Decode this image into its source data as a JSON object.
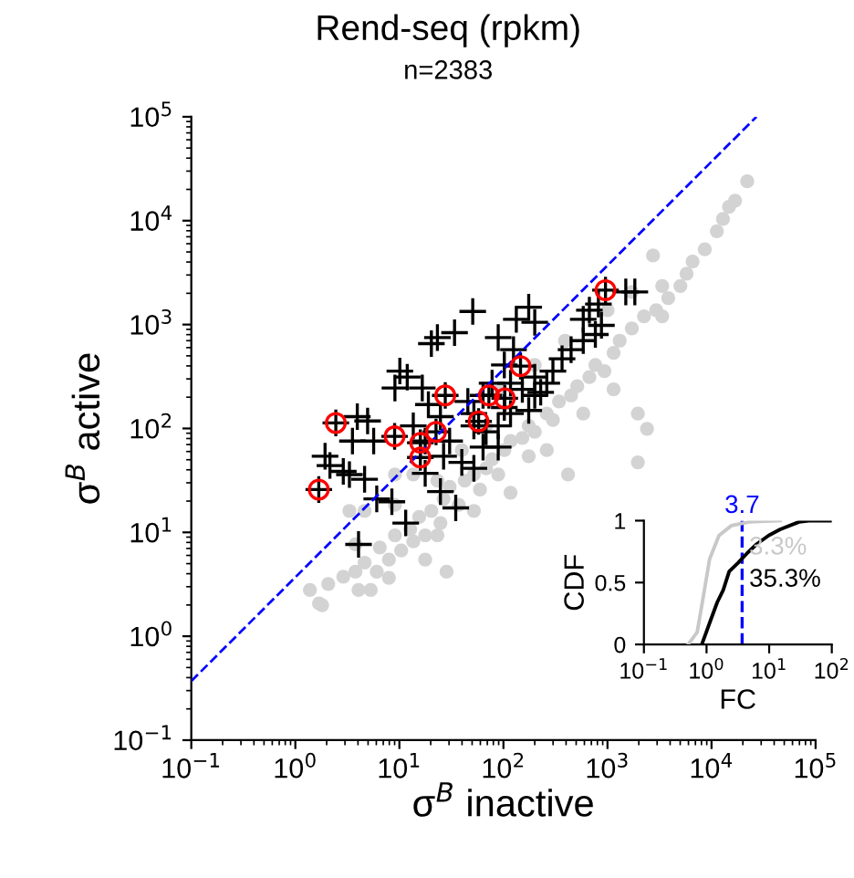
{
  "chart_data": [
    {
      "type": "scatter",
      "title": "Rend-seq (rpkm)",
      "subtitle": "n=2383",
      "xlabel": "σ$^{B}$ inactive",
      "ylabel": "σ$^{B}$ active",
      "log": "xy",
      "xlim": [
        0.1,
        100000
      ],
      "ylim": [
        0.1,
        100000
      ],
      "xticks": [
        {
          "value": 0.1,
          "label": "10$^{−1}$"
        },
        {
          "value": 1,
          "label": "10$^{0}$"
        },
        {
          "value": 10,
          "label": "10$^{1}$"
        },
        {
          "value": 100,
          "label": "10$^{2}$"
        },
        {
          "value": 1000,
          "label": "10$^{3}$"
        },
        {
          "value": 10000,
          "label": "10$^{4}$"
        },
        {
          "value": 100000,
          "label": "10$^{5}$"
        }
      ],
      "yticks": [
        {
          "value": 0.1,
          "label": "10$^{−1}$"
        },
        {
          "value": 1,
          "label": "10$^{0}$"
        },
        {
          "value": 10,
          "label": "10$^{1}$"
        },
        {
          "value": 100,
          "label": "10$^{2}$"
        },
        {
          "value": 1000,
          "label": "10$^{3}$"
        },
        {
          "value": 10000,
          "label": "10$^{4}$"
        },
        {
          "value": 100000,
          "label": "10$^{5}$"
        }
      ],
      "grid": false,
      "series": [
        {
          "type": "scatter",
          "marker": "circle",
          "color": "#d3d3d3",
          "x": [
            1.38,
            1.69,
            2.07,
            2.89,
            3.78,
            4.05,
            4.63,
            6.06,
            6.48,
            7.93,
            9.06,
            10.4,
            12.7,
            13.6,
            15.5,
            17.7,
            20.3,
            24.8,
            26.6,
            30.4,
            37.2,
            42.5,
            52.0,
            59.5,
            68.1,
            77.8,
            89.1,
            102,
            117,
            152,
            175,
            200,
            261,
            299,
            342,
            447,
            512,
            670,
            765,
            935,
            1145,
            1310,
            1714,
            2244,
            2938,
            3357,
            3837,
            5023,
            5754,
            6577,
            8610,
            11250,
            12880,
            14720,
            16830,
            22030,
            2742,
            1959,
            2399,
            1959,
            418,
            261,
            117,
            52.0,
            23.2,
            17.7,
            7.93,
            5.3,
            3.78,
            4.63,
            3.31,
            9.06,
            13.6,
            23.2,
            39.8,
            68.1,
            89.1,
            200,
            391,
            1002,
            1714,
            3357,
            9.06,
            28.4,
            175,
            585,
            1145,
            1.81
          ],
          "values": [
            2.79,
            2.07,
            3.19,
            3.75,
            4.18,
            2.79,
            5.11,
            4.18,
            7.16,
            5.47,
            9.37,
            6.69,
            10.7,
            8.19,
            14.1,
            9.37,
            16.1,
            12.3,
            21.0,
            27.5,
            18.4,
            31.5,
            36.1,
            25.8,
            41.3,
            50.6,
            36.1,
            61.9,
            75.7,
            81.0,
            106,
            92.7,
            139,
            121,
            182,
            208,
            255,
            312,
            408,
            357,
            535,
            700,
            918,
            1202,
            1374,
            1202,
            1799,
            2355,
            3083,
            4046,
            5297,
            7925,
            10380,
            13590,
            15560,
            23930,
            4624,
            139,
            99.3,
            47.2,
            36.1,
            61.9,
            24.1,
            16.1,
            9.37,
            5.47,
            3.65,
            2.79,
            7.66,
            16.1,
            16.1,
            36.1,
            36.1,
            31.5,
            61.9,
            106,
            238,
            408,
            700,
            1374,
            2061,
            2355,
            18.4,
            4.18,
            54.1,
            139,
            238,
            1.99
          ]
        },
        {
          "type": "scatter",
          "marker": "cross",
          "color": "#000000",
          "x": [
            1.68,
            1.93,
            2.15,
            2.89,
            3.31,
            4.63,
            3.54,
            3.94,
            4.95,
            5.66,
            6.06,
            8.47,
            11.5,
            4.05,
            9.06,
            10.1,
            11.9,
            16.6,
            19.0,
            20.3,
            23.2,
            33.9,
            50.7,
            13.6,
            24.8,
            17.7,
            24.8,
            34.8,
            26.6,
            39.8,
            52.0,
            63.7,
            68.1,
            89.1,
            77.8,
            89.1,
            125,
            133,
            175,
            200,
            102,
            117,
            152,
            200,
            102,
            89.1,
            117,
            175,
            228,
            299,
            366,
            447,
            585,
            765,
            875,
            585,
            670,
            818,
            1500,
            1832,
            261,
            63.7,
            45.5,
            52.0,
            30.4,
            17.7,
            52.0,
            200,
            2.45,
            9.0,
            15.9,
            15.9,
            22.5,
            27.6,
            57.7,
            72.5,
            103,
            146,
            957
          ],
          "values": [
            25.8,
            54,
            44,
            38.6,
            36,
            32.4,
            75.7,
            130,
            118,
            75.7,
            21,
            19.7,
            12.3,
            7.66,
            245,
            357,
            312,
            245,
            170,
            655,
            750,
            835,
            1337,
            106,
            130,
            37,
            24.7,
            17.2,
            54,
            47.2,
            41.3,
            66.2,
            92.7,
            66.2,
            273,
            750,
            573,
            1122,
            1469,
            1050,
            408,
            273,
            238,
            208,
            159,
            106,
            139,
            149,
            223,
            357,
            468,
            573,
            700,
            802,
            982,
            1122,
            1374,
            1574,
            2061,
            2061,
            273,
            208,
            182,
            106,
            75.7,
            75.7,
            139,
            312,
            113,
            84,
            72.8,
            52.6,
            92.7,
            208,
            117,
            208,
            195,
            398,
            2143
          ]
        },
        {
          "type": "scatter",
          "marker": "circle",
          "color": "#ff0000",
          "x": [
            1.68,
            2.45,
            9.0,
            15.9,
            15.9,
            22.5,
            27.6,
            57.7,
            72.5,
            103,
            146,
            957
          ],
          "values": [
            25.8,
            113,
            84,
            72.8,
            52.6,
            92.7,
            208,
            117,
            208,
            195,
            398,
            2143
          ]
        },
        {
          "type": "line",
          "line_style": "dashed",
          "color": "#0000ff",
          "x": [
            0.1,
            27000
          ],
          "values": [
            0.37,
            99900
          ]
        }
      ]
    },
    {
      "type": "line",
      "xlabel": "FC",
      "ylabel": "CDF",
      "log": "x",
      "xlim": [
        0.1,
        100
      ],
      "ylim": [
        0,
        1
      ],
      "xticks": [
        {
          "value": 0.1,
          "label": "10$^{−1}$"
        },
        {
          "value": 1,
          "label": "10$^{0}$"
        },
        {
          "value": 10,
          "label": "10$^{1}$"
        },
        {
          "value": 100,
          "label": "10$^{2}$"
        }
      ],
      "yticks": [
        0,
        0.5,
        1
      ],
      "grid": false,
      "ref_lines": [
        {
          "axis": "x",
          "value": 3.7,
          "label": "3.7",
          "color": "#0000ff",
          "line_style": "dashed"
        }
      ],
      "annotations": [
        "3.3%",
        "35.3%"
      ],
      "series": [
        {
          "color": "#c8c8c8",
          "x": [
            0.51,
            0.71,
            0.89,
            1.12,
            1.58,
            2.5,
            4.8,
            15
          ],
          "values": [
            0,
            0.1,
            0.39,
            0.69,
            0.88,
            0.96,
            0.99,
            1
          ]
        },
        {
          "color": "#000000",
          "x": [
            0.84,
            1.17,
            1.48,
            1.85,
            2.3,
            3.2,
            4.5,
            6.3,
            9.8,
            15,
            30,
            43,
            100
          ],
          "values": [
            0,
            0.2,
            0.34,
            0.44,
            0.59,
            0.66,
            0.74,
            0.81,
            0.88,
            0.93,
            0.99,
            1,
            1
          ]
        }
      ]
    }
  ]
}
